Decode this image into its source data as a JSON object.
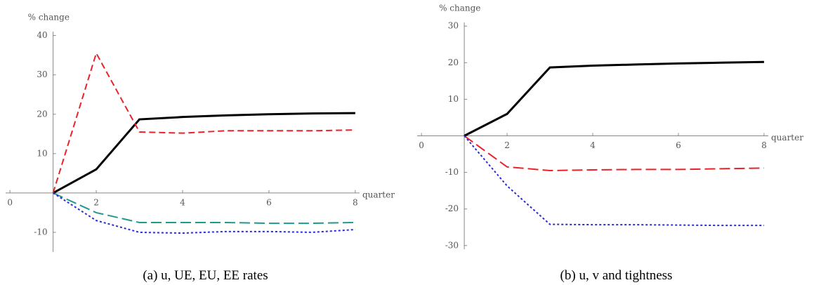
{
  "chart_data": [
    {
      "type": "line",
      "caption": "(a) u, UE, EU, EE rates",
      "y_label": "% change",
      "x_label": "quarter",
      "x": [
        1,
        2,
        3,
        4,
        5,
        6,
        7,
        8
      ],
      "series": [
        {
          "color": "#000000",
          "style": "solid",
          "values": [
            0,
            6,
            18.7,
            19.3,
            19.7,
            20,
            20.2,
            20.3
          ]
        },
        {
          "color": "#e8232a",
          "style": "dashed",
          "values": [
            0,
            35.5,
            15.5,
            15.2,
            15.8,
            15.8,
            15.8,
            16
          ]
        },
        {
          "color": "#1f9a8c",
          "style": "longdash",
          "values": [
            0,
            -5,
            -7.5,
            -7.5,
            -7.5,
            -7.7,
            -7.7,
            -7.5
          ]
        },
        {
          "color": "#2b2bd8",
          "style": "dotted",
          "values": [
            0,
            -7,
            -10,
            -10.2,
            -9.8,
            -9.8,
            -10,
            -9.3
          ]
        }
      ],
      "xlim": [
        -0.1,
        8.1
      ],
      "xticks": [
        0,
        2,
        4,
        6,
        8
      ],
      "ylim": [
        -15,
        41
      ],
      "yticks": [
        -10,
        10,
        20,
        30,
        40
      ]
    },
    {
      "type": "line",
      "caption": "(b) u, v and tightness",
      "y_label": "% change",
      "x_label": "quarter",
      "x": [
        1,
        2,
        3,
        4,
        5,
        6,
        7,
        8
      ],
      "series": [
        {
          "color": "#000000",
          "style": "solid",
          "values": [
            0,
            6,
            18.7,
            19.2,
            19.5,
            19.8,
            20,
            20.2
          ]
        },
        {
          "color": "#e8232a",
          "style": "longdash",
          "values": [
            0,
            -8.5,
            -9.5,
            -9.3,
            -9.2,
            -9.2,
            -9,
            -8.8
          ]
        },
        {
          "color": "#2b2bd8",
          "style": "dotted",
          "values": [
            0,
            -13.7,
            -24.2,
            -24.3,
            -24.3,
            -24.4,
            -24.5,
            -24.5
          ]
        }
      ],
      "xlim": [
        -0.1,
        8.1
      ],
      "xticks": [
        0,
        2,
        4,
        6,
        8
      ],
      "ylim": [
        -31,
        31
      ],
      "yticks": [
        -30,
        -20,
        -10,
        10,
        20,
        30
      ]
    }
  ]
}
